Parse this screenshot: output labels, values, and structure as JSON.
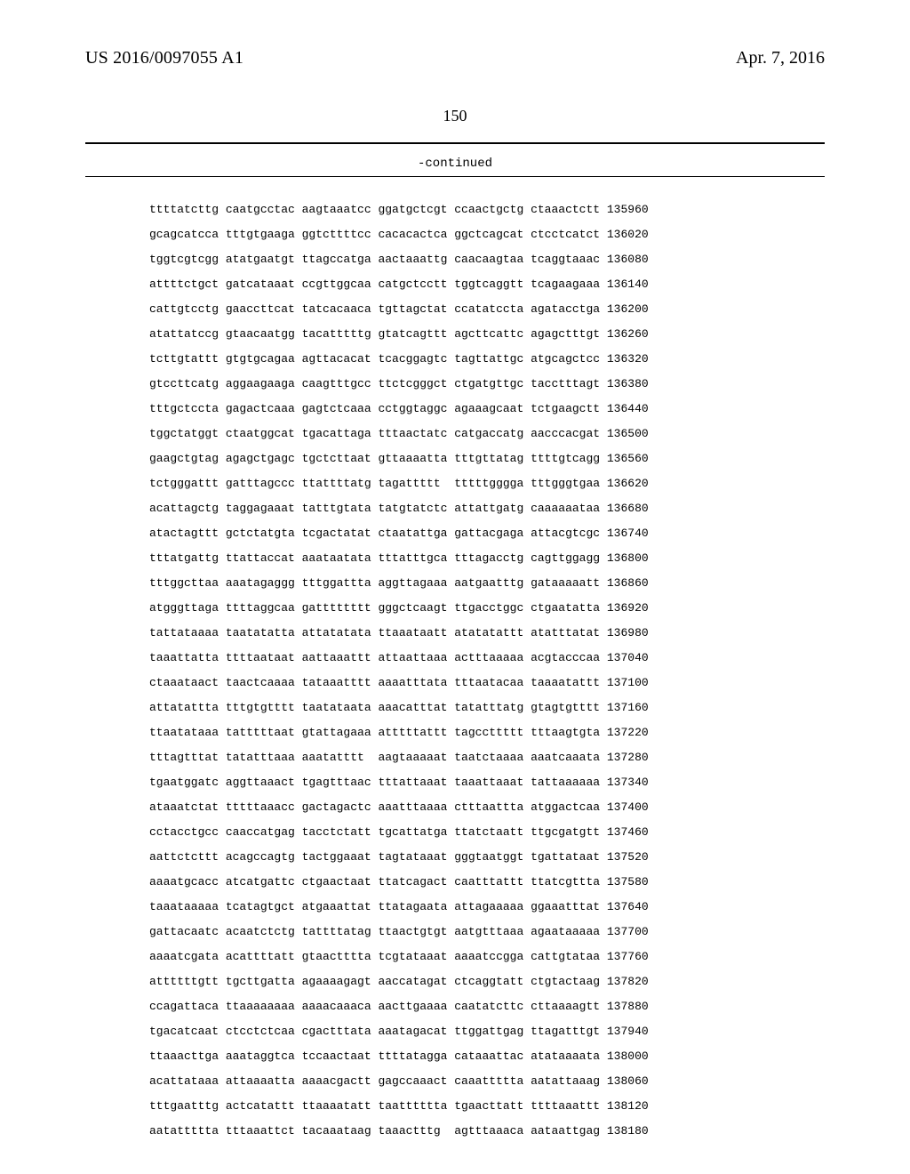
{
  "header": {
    "left": "US 2016/0097055 A1",
    "right": "Apr. 7, 2016"
  },
  "page_number": "150",
  "continued_label": "-continued",
  "sequence_rows": [
    {
      "tokens": [
        "ttttatcttg",
        "caatgcctac",
        "aagtaaatcc",
        "ggatgctcgt",
        "ccaactgctg",
        "ctaaactctt"
      ],
      "pos": "135960"
    },
    {
      "tokens": [
        "gcagcatcca",
        "tttgtgaaga",
        "ggtcttttcc",
        "cacacactca",
        "ggctcagcat",
        "ctcctcatct"
      ],
      "pos": "136020"
    },
    {
      "tokens": [
        "tggtcgtcgg",
        "atatgaatgt",
        "ttagccatga",
        "aactaaattg",
        "caacaagtaa",
        "tcaggtaaac"
      ],
      "pos": "136080"
    },
    {
      "tokens": [
        "attttctgct",
        "gatcataaat",
        "ccgttggcaa",
        "catgctcctt",
        "tggtcaggtt",
        "tcagaagaaa"
      ],
      "pos": "136140"
    },
    {
      "tokens": [
        "cattgtcctg",
        "gaaccttcat",
        "tatcacaaca",
        "tgttagctat",
        "ccatatccta",
        "agatacctga"
      ],
      "pos": "136200"
    },
    {
      "tokens": [
        "atattatccg",
        "gtaacaatgg",
        "tacatttttg",
        "gtatcagttt",
        "agcttcattc",
        "agagctttgt"
      ],
      "pos": "136260"
    },
    {
      "tokens": [
        "tcttgtattt",
        "gtgtgcagaa",
        "agttacacat",
        "tcacggagtc",
        "tagttattgc",
        "atgcagctcc"
      ],
      "pos": "136320"
    },
    {
      "tokens": [
        "gtccttcatg",
        "aggaagaaga",
        "caagtttgcc",
        "ttctcgggct",
        "ctgatgttgc",
        "tacctttagt"
      ],
      "pos": "136380"
    },
    {
      "tokens": [
        "tttgctccta",
        "gagactcaaa",
        "gagtctcaaa",
        "cctggtaggc",
        "agaaagcaat",
        "tctgaagctt"
      ],
      "pos": "136440"
    },
    {
      "tokens": [
        "tggctatggt",
        "ctaatggcat",
        "tgacattaga",
        "tttaactatc",
        "catgaccatg",
        "aacccacgat"
      ],
      "pos": "136500"
    },
    {
      "tokens": [
        "gaagctgtag",
        "agagctgagc",
        "tgctcttaat",
        "gttaaaatta",
        "tttgttatag",
        "ttttgtcagg"
      ],
      "pos": "136560"
    },
    {
      "tokens": [
        "tctgggattt",
        "gatttagccc",
        "ttattttatg",
        "tagattttt ",
        "tttttgggga",
        "tttgggtgaa"
      ],
      "pos": "136620"
    },
    {
      "tokens": [
        "acattagctg",
        "taggagaaat",
        "tatttgtata",
        "tatgtatctc",
        "attattgatg",
        "caaaaaataa"
      ],
      "pos": "136680"
    },
    {
      "tokens": [
        "atactagttt",
        "gctctatgta",
        "tcgactatat",
        "ctaatattga",
        "gattacgaga",
        "attacgtcgc"
      ],
      "pos": "136740"
    },
    {
      "tokens": [
        "tttatgattg",
        "ttattaccat",
        "aaataatata",
        "tttatttgca",
        "tttagacctg",
        "cagttggagg"
      ],
      "pos": "136800"
    },
    {
      "tokens": [
        "tttggcttaa",
        "aaatagaggg",
        "tttggattta",
        "aggttagaaa",
        "aatgaatttg",
        "gataaaaatt"
      ],
      "pos": "136860"
    },
    {
      "tokens": [
        "atgggttaga",
        "ttttaggcaa",
        "gatttttttt",
        "gggctcaagt",
        "ttgacctggc",
        "ctgaatatta"
      ],
      "pos": "136920"
    },
    {
      "tokens": [
        "tattataaaa",
        "taatatatta",
        "attatatata",
        "ttaaataatt",
        "atatatattt",
        "atatttatat"
      ],
      "pos": "136980"
    },
    {
      "tokens": [
        "taaattatta",
        "ttttaataat",
        "aattaaattt",
        "attaattaaa",
        "actttaaaaa",
        "acgtacccaa"
      ],
      "pos": "137040"
    },
    {
      "tokens": [
        "ctaaataact",
        "taactcaaaa",
        "tataaatttt",
        "aaaatttata",
        "tttaatacaa",
        "taaaatattt"
      ],
      "pos": "137100"
    },
    {
      "tokens": [
        "attatattta",
        "tttgtgtttt",
        "taatataata",
        "aaacatttat",
        "tatatttatg",
        "gtagtgtttt"
      ],
      "pos": "137160"
    },
    {
      "tokens": [
        "ttaatataaa",
        "tatttttaat",
        "gtattagaaa",
        "atttttattt",
        "tagccttttt",
        "tttaagtgta"
      ],
      "pos": "137220"
    },
    {
      "tokens": [
        "tttagtttat",
        "tatatttaaa",
        "aaatatttt ",
        "aagtaaaaat",
        "taatctaaaa",
        "aaatcaaata"
      ],
      "pos": "137280"
    },
    {
      "tokens": [
        "tgaatggatc",
        "aggttaaact",
        "tgagtttaac",
        "tttattaaat",
        "taaattaaat",
        "tattaaaaaa"
      ],
      "pos": "137340"
    },
    {
      "tokens": [
        "ataaatctat",
        "tttttaaacc",
        "gactagactc",
        "aaatttaaaa",
        "ctttaattta",
        "atggactcaa"
      ],
      "pos": "137400"
    },
    {
      "tokens": [
        "cctacctgcc",
        "caaccatgag",
        "tacctctatt",
        "tgcattatga",
        "ttatctaatt",
        "ttgcgatgtt"
      ],
      "pos": "137460"
    },
    {
      "tokens": [
        "aattctcttt",
        "acagccagtg",
        "tactggaaat",
        "tagtataaat",
        "gggtaatggt",
        "tgattataat"
      ],
      "pos": "137520"
    },
    {
      "tokens": [
        "aaaatgcacc",
        "atcatgattc",
        "ctgaactaat",
        "ttatcagact",
        "caatttattt",
        "ttatcgttta"
      ],
      "pos": "137580"
    },
    {
      "tokens": [
        "taaataaaaa",
        "tcatagtgct",
        "atgaaattat",
        "ttatagaata",
        "attagaaaaa",
        "ggaaatttat"
      ],
      "pos": "137640"
    },
    {
      "tokens": [
        "gattacaatc",
        "acaatctctg",
        "tattttatag",
        "ttaactgtgt",
        "aatgtttaaa",
        "agaataaaaa"
      ],
      "pos": "137700"
    },
    {
      "tokens": [
        "aaaatcgata",
        "acattttatt",
        "gtaactttta",
        "tcgtataaat",
        "aaaatccgga",
        "cattgtataa"
      ],
      "pos": "137760"
    },
    {
      "tokens": [
        "attttttgtt",
        "tgcttgatta",
        "agaaaagagt",
        "aaccatagat",
        "ctcaggtatt",
        "ctgtactaag"
      ],
      "pos": "137820"
    },
    {
      "tokens": [
        "ccagattaca",
        "ttaaaaaaaa",
        "aaaacaaaca",
        "aacttgaaaa",
        "caatatcttc",
        "cttaaaagtt"
      ],
      "pos": "137880"
    },
    {
      "tokens": [
        "tgacatcaat",
        "ctcctctcaa",
        "cgactttata",
        "aaatagacat",
        "ttggattgag",
        "ttagatttgt"
      ],
      "pos": "137940"
    },
    {
      "tokens": [
        "ttaaacttga",
        "aaataggtca",
        "tccaactaat",
        "ttttatagga",
        "cataaattac",
        "atataaaata"
      ],
      "pos": "138000"
    },
    {
      "tokens": [
        "acattataaa",
        "attaaaatta",
        "aaaacgactt",
        "gagccaaact",
        "caaattttta",
        "aatattaaag"
      ],
      "pos": "138060"
    },
    {
      "tokens": [
        "tttgaatttg",
        "actcatattt",
        "ttaaaatatt",
        "taatttttta",
        "tgaacttatt",
        "ttttaaattt"
      ],
      "pos": "138120"
    },
    {
      "tokens": [
        "aatattttta",
        "tttaaattct",
        "tacaaataag",
        "taaactttg ",
        "agtttaaaca",
        "aataattgag"
      ],
      "pos": "138180"
    }
  ]
}
